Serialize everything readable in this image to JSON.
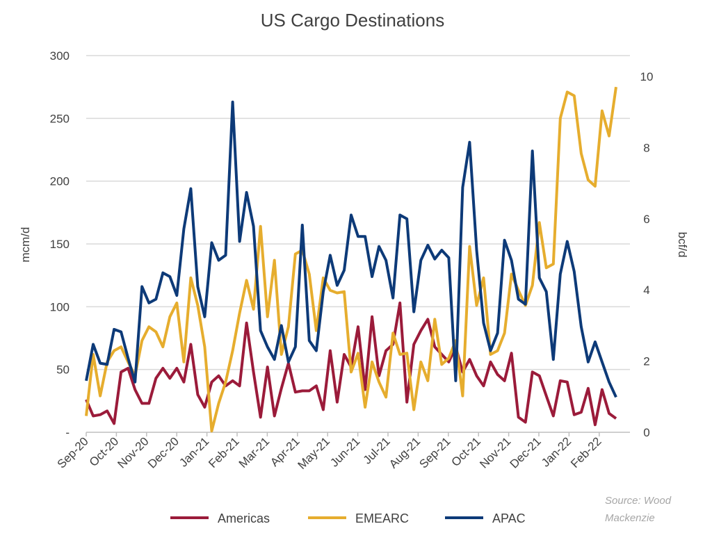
{
  "chart_data": {
    "type": "line",
    "title": "US Cargo Destinations",
    "ylabel": "mcm/d",
    "y2label": "bcf/d",
    "ylim": [
      0,
      300
    ],
    "y2lim": [
      0,
      10
    ],
    "yticks": [
      "-",
      "50",
      "100",
      "150",
      "200",
      "250",
      "300"
    ],
    "y2ticks": [
      "0",
      "2",
      "4",
      "6",
      "8",
      "10"
    ],
    "xticks": [
      "Sep-20",
      "Oct-20",
      "Nov-20",
      "Dec-20",
      "Jan-21",
      "Feb-21",
      "Mar-21",
      "Apr-21",
      "May-21",
      "Jun-21",
      "Jul-21",
      "Aug-21",
      "Sep-21",
      "Oct-21",
      "Nov-21",
      "Dec-21",
      "Jan-22",
      "Feb-22"
    ],
    "grid": true,
    "legend": "bottom",
    "source": [
      "Source: Wood",
      "Mackenzie"
    ],
    "series": [
      {
        "name": "Americas",
        "color": "#9b1b3a",
        "values": [
          26,
          13,
          14,
          17,
          7,
          48,
          51,
          34,
          23,
          23,
          43,
          51,
          43,
          51,
          40,
          70,
          30,
          20,
          40,
          45,
          37,
          41,
          37,
          87,
          48,
          12,
          52,
          13,
          35,
          55,
          32,
          33,
          33,
          37,
          18,
          65,
          24,
          62,
          52,
          84,
          34,
          92,
          45,
          65,
          70,
          103,
          24,
          70,
          81,
          90,
          68,
          62,
          56,
          68,
          48,
          58,
          45,
          37,
          56,
          46,
          41,
          63,
          12,
          8,
          48,
          45,
          29,
          13,
          41,
          40,
          14,
          16,
          35,
          6,
          34,
          15,
          11
        ]
      },
      {
        "name": "EMEARC",
        "color": "#e6ad2e",
        "values": [
          13,
          62,
          29,
          56,
          65,
          68,
          56,
          45,
          73,
          84,
          80,
          68,
          92,
          103,
          56,
          123,
          101,
          68,
          1,
          23,
          40,
          65,
          95,
          121,
          98,
          164,
          92,
          137,
          62,
          84,
          142,
          145,
          126,
          81,
          123,
          113,
          111,
          112,
          48,
          63,
          20,
          56,
          40,
          28,
          79,
          62,
          63,
          18,
          56,
          41,
          90,
          54,
          59,
          73,
          29,
          148,
          101,
          123,
          62,
          65,
          79,
          126,
          113,
          101,
          117,
          167,
          131,
          134,
          250,
          271,
          268,
          222,
          201,
          196,
          256,
          236,
          275
        ]
      },
      {
        "name": "APAC",
        "color": "#0d3a78",
        "values": [
          41,
          70,
          55,
          54,
          82,
          80,
          59,
          40,
          116,
          103,
          106,
          127,
          124,
          109,
          162,
          194,
          116,
          92,
          151,
          137,
          141,
          263,
          152,
          191,
          164,
          81,
          68,
          58,
          85,
          56,
          68,
          165,
          73,
          65,
          112,
          141,
          117,
          129,
          173,
          156,
          156,
          124,
          148,
          137,
          107,
          173,
          170,
          96,
          137,
          149,
          138,
          145,
          139,
          41,
          195,
          231,
          145,
          87,
          65,
          79,
          153,
          137,
          106,
          102,
          224,
          123,
          112,
          58,
          126,
          152,
          128,
          84,
          56,
          72,
          56,
          40,
          28
        ]
      }
    ]
  }
}
